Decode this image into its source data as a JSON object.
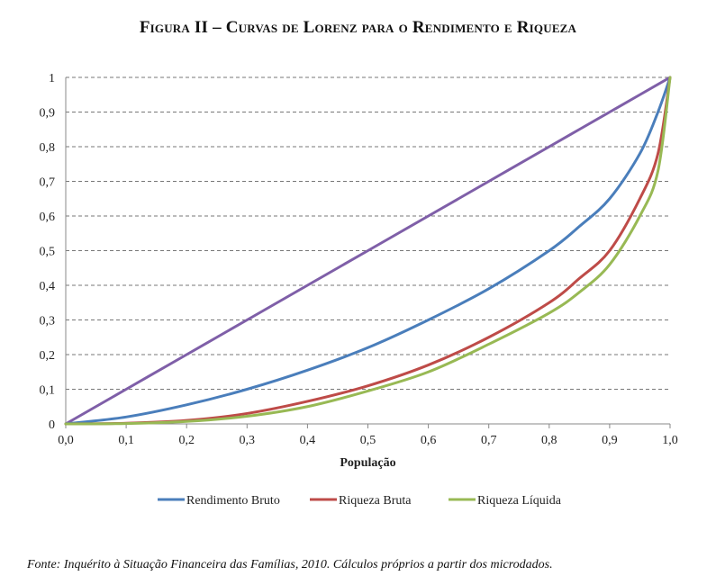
{
  "figure_title": "Figura II – Curvas de Lorenz para o Rendimento e Riqueza",
  "source_note": "Fonte: Inquérito à Situação Financeira das Famílias, 2010. Cálculos próprios a partir dos microdados.",
  "chart_data": {
    "type": "line",
    "title": "",
    "xlabel": "População",
    "ylabel": "",
    "xlim": [
      0,
      1
    ],
    "ylim": [
      0,
      1
    ],
    "x_ticks": [
      "0,0",
      "0,1",
      "0,2",
      "0,3",
      "0,4",
      "0,5",
      "0,6",
      "0,7",
      "0,8",
      "0,9",
      "1,0"
    ],
    "y_ticks": [
      "0",
      "0,1",
      "0,2",
      "0,3",
      "0,4",
      "0,5",
      "0,6",
      "0,7",
      "0,8",
      "0,9",
      "1"
    ],
    "grid": "horizontal dashed",
    "legend_position": "bottom",
    "x": [
      0,
      0.1,
      0.2,
      0.3,
      0.4,
      0.5,
      0.6,
      0.7,
      0.8,
      0.85,
      0.9,
      0.95,
      0.98,
      1.0
    ],
    "series": [
      {
        "name": "Rendimento Bruto",
        "color": "#4a7ebb",
        "values": [
          0,
          0.02,
          0.055,
          0.1,
          0.155,
          0.22,
          0.3,
          0.39,
          0.5,
          0.57,
          0.65,
          0.78,
          0.9,
          1.0
        ]
      },
      {
        "name": "Riqueza Bruta",
        "color": "#be4b48",
        "values": [
          0,
          0.002,
          0.01,
          0.03,
          0.065,
          0.11,
          0.17,
          0.25,
          0.35,
          0.42,
          0.5,
          0.65,
          0.78,
          1.0
        ]
      },
      {
        "name": "Riqueza Líquida",
        "color": "#98b954",
        "values": [
          0,
          0.001,
          0.007,
          0.022,
          0.05,
          0.095,
          0.15,
          0.23,
          0.32,
          0.38,
          0.46,
          0.6,
          0.73,
          1.0
        ]
      },
      {
        "name": "",
        "color": "#7f5fa8",
        "values": [
          0,
          0.1,
          0.2,
          0.3,
          0.4,
          0.5,
          0.6,
          0.7,
          0.8,
          0.85,
          0.9,
          0.95,
          0.98,
          1.0
        ]
      }
    ]
  }
}
